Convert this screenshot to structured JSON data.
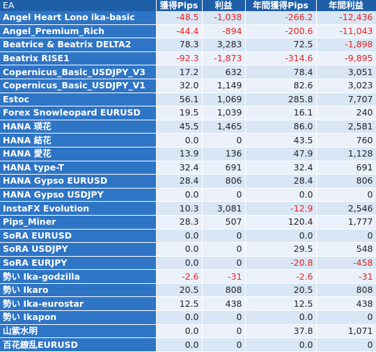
{
  "headers": [
    "EA",
    "獲得Pips",
    "利益",
    "年間獲得Pips",
    "年間利益"
  ],
  "rows": [
    {
      "name": "Angel Heart Lono ika-basic",
      "pips": "-48.5",
      "profit": "-1,038",
      "ypips": "-266.2",
      "yprofit": "-12,436"
    },
    {
      "name": "Angel_Premium_Rich",
      "pips": "-44.4",
      "profit": "-894",
      "ypips": "-200.6",
      "yprofit": "-11,043"
    },
    {
      "name": "Beatrice & Beatrix DELTA2",
      "pips": "78.3",
      "profit": "3,283",
      "ypips": "72.5",
      "yprofit": "-1,898"
    },
    {
      "name": "Beatrix RISE1",
      "pips": "-92.3",
      "profit": "-1,873",
      "ypips": "-314.6",
      "yprofit": "-9,895"
    },
    {
      "name": "Copernicus_Basic_USDJPY_V3",
      "pips": "17.2",
      "profit": "632",
      "ypips": "78.4",
      "yprofit": "3,051"
    },
    {
      "name": "Copernicus_Basic_USDJPY_V1",
      "pips": "32.0",
      "profit": "1,149",
      "ypips": "82.6",
      "yprofit": "3,023"
    },
    {
      "name": "Estoc",
      "pips": "56.1",
      "profit": "1,069",
      "ypips": "285.8",
      "yprofit": "7,707"
    },
    {
      "name": "Forex Snowleopard EURUSD",
      "pips": "19.5",
      "profit": "1,039",
      "ypips": "16.1",
      "yprofit": "240"
    },
    {
      "name": "HANA 瑛花",
      "pips": "45.5",
      "profit": "1,465",
      "ypips": "86.0",
      "yprofit": "2,581"
    },
    {
      "name": "HANA 結花",
      "pips": "0.0",
      "profit": "0",
      "ypips": "43.5",
      "yprofit": "760"
    },
    {
      "name": "HANA 愛花",
      "pips": "13.9",
      "profit": "136",
      "ypips": "47.9",
      "yprofit": "1,128"
    },
    {
      "name": "HANA type-T",
      "pips": "32.4",
      "profit": "691",
      "ypips": "32.4",
      "yprofit": "691"
    },
    {
      "name": "HANA Gypso EURUSD",
      "pips": "28.4",
      "profit": "806",
      "ypips": "28.4",
      "yprofit": "806"
    },
    {
      "name": "HANA Gypso USDJPY",
      "pips": "0.0",
      "profit": "0",
      "ypips": "0.0",
      "yprofit": "0"
    },
    {
      "name": "InstaFX Evolution",
      "pips": "10.3",
      "profit": "3,081",
      "ypips": "-12.9",
      "yprofit": "2,546"
    },
    {
      "name": "Pips_Miner",
      "pips": "28.3",
      "profit": "507",
      "ypips": "120.4",
      "yprofit": "1,777"
    },
    {
      "name": "SoRA EURUSD",
      "pips": "0.0",
      "profit": "0",
      "ypips": "0.0",
      "yprofit": "0"
    },
    {
      "name": "SoRA USDJPY",
      "pips": "0.0",
      "profit": "0",
      "ypips": "29.5",
      "yprofit": "548"
    },
    {
      "name": "SoRA EURJPY",
      "pips": "0.0",
      "profit": "0",
      "ypips": "-20.8",
      "yprofit": "-458"
    },
    {
      "name": "勢い Ika-godzilla",
      "pips": "-2.6",
      "profit": "-31",
      "ypips": "-2.6",
      "yprofit": "-31"
    },
    {
      "name": "勢い Ikaro",
      "pips": "20.5",
      "profit": "808",
      "ypips": "20.5",
      "yprofit": "808"
    },
    {
      "name": "勢い Ika-eurostar",
      "pips": "12.5",
      "profit": "438",
      "ypips": "12.5",
      "yprofit": "438"
    },
    {
      "name": "勢い Ikapon",
      "pips": "0.0",
      "profit": "0",
      "ypips": "0.0",
      "yprofit": "0"
    },
    {
      "name": "山紫水明",
      "pips": "0.0",
      "profit": "0",
      "ypips": "37.8",
      "yprofit": "1,071"
    },
    {
      "name": "百花繚乱EURUSD",
      "pips": "0.0",
      "profit": "0",
      "ypips": "0.0",
      "yprofit": "0"
    }
  ],
  "colors": {
    "header_bg": "#1f5fa8",
    "name_bg": "#2e75c6",
    "cell_bg": "#d8e6f5",
    "negative_text": "#e8231f"
  }
}
